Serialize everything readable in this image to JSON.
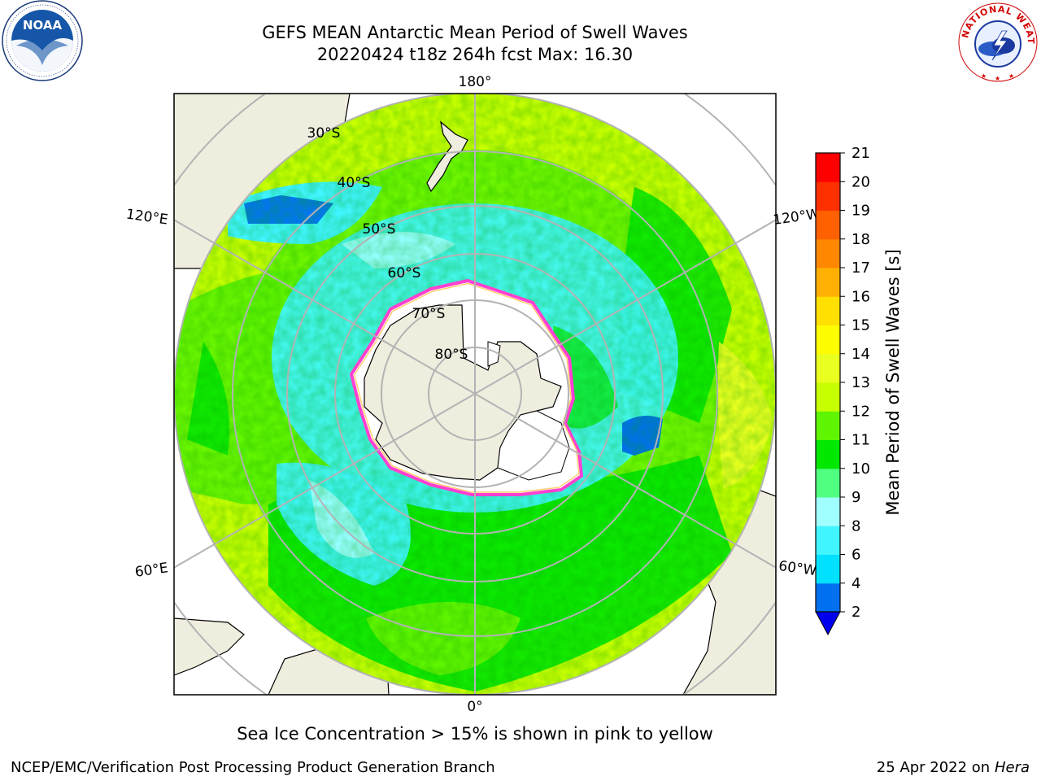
{
  "header": {
    "title_line1": "GEFS MEAN Antarctic Mean Period of Swell Waves",
    "title_line2": "20220424 t18z 264h fcst   Max: 16.30"
  },
  "map": {
    "projection": "south-polar-stereographic",
    "longitude_labels": {
      "top": "180°",
      "bottom": "0°",
      "upper_left": "120°E",
      "upper_right": "120°W",
      "lower_left": "60°E",
      "lower_right": "60°W"
    },
    "latitude_labels": [
      "30°S",
      "40°S",
      "50°S",
      "60°S",
      "70°S",
      "80°S"
    ],
    "land_color": "#efedde",
    "grid_color": "#b3b3b3"
  },
  "colorbar": {
    "label": "Mean Period of Swell Waves [s]",
    "ticks": [
      "2",
      "4",
      "6",
      "8",
      "9",
      "10",
      "11",
      "12",
      "13",
      "14",
      "15",
      "16",
      "17",
      "18",
      "19",
      "20",
      "21"
    ],
    "colors": [
      "#0070f0",
      "#00e0ff",
      "#40f5ff",
      "#a0ffff",
      "#50ff80",
      "#00e800",
      "#5ff500",
      "#c8ff00",
      "#e8ff20",
      "#fdfd00",
      "#ffe000",
      "#ffb000",
      "#ff8800",
      "#ff6000",
      "#ff3000",
      "#ff0000"
    ],
    "underflow_color": "#0000ee"
  },
  "notes": {
    "sea_ice": "Sea Ice Concentration > 15% is shown in pink to yellow"
  },
  "footer": {
    "credit": "NCEP/EMC/Verification Post Processing Product Generation Branch",
    "date": "25 Apr 2022 on ",
    "host": "Hera"
  },
  "logos": {
    "noaa_text": "NOAA",
    "nws_text": "NATIONAL WEATHER SERVICE"
  }
}
